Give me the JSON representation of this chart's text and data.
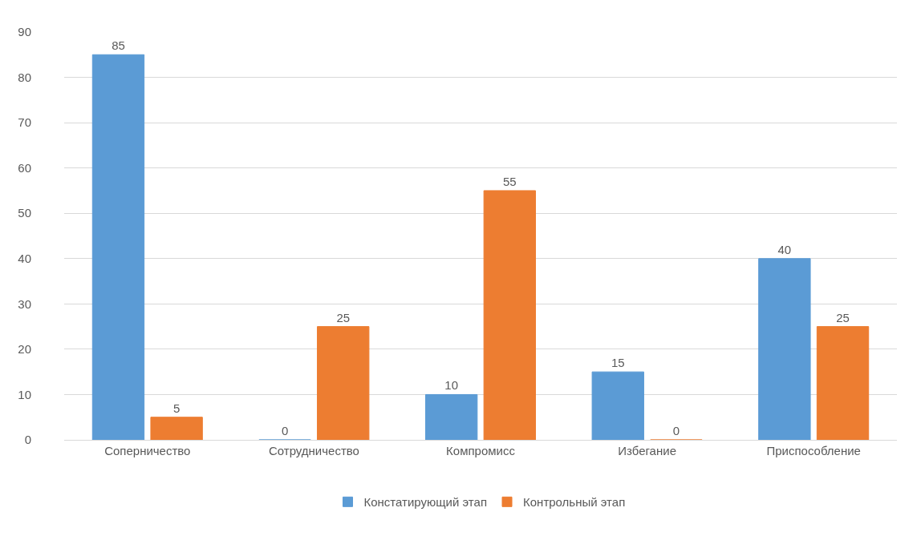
{
  "chart_data": {
    "type": "bar",
    "categories": [
      "Соперничество",
      "Сотрудничество",
      "Компромисс",
      "Избегание",
      "Приспособление"
    ],
    "series": [
      {
        "name": "Констатирующий этап",
        "color": "#5b9bd5",
        "values": [
          85,
          0,
          10,
          15,
          40
        ]
      },
      {
        "name": "Контрольный этап",
        "color": "#ed7d31",
        "values": [
          5,
          25,
          55,
          0,
          25
        ]
      }
    ],
    "ylim": [
      0,
      90
    ],
    "yticks": [
      0,
      10,
      20,
      30,
      40,
      50,
      60,
      70,
      80,
      90
    ],
    "grid": "y",
    "legend": "bottom",
    "data_labels": true
  }
}
